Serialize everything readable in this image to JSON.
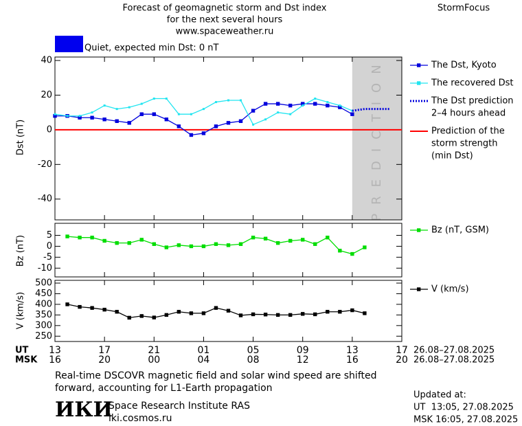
{
  "header": {
    "title": [
      "Forecast of geomagnetic storm and Dst index",
      "for the next several hours",
      "www.spaceweather.ru"
    ],
    "brand": "StormFocus"
  },
  "status": {
    "text": "Quiet, expected min Dst: 0 nT",
    "color": "#0000ee"
  },
  "chart_data": [
    {
      "type": "line",
      "ylabel": "Dst (nT)",
      "xlim": [
        0,
        28
      ],
      "ylim": [
        -52,
        42
      ],
      "yticks": [
        -40,
        -20,
        0,
        20,
        40
      ],
      "prediction_region": {
        "x": [
          24,
          28
        ],
        "color": "#d3d3d3",
        "label": "PREDICTION"
      },
      "min_dst": {
        "name": [
          "Prediction of the",
          "storm strength",
          "(min Dst)"
        ],
        "color": "#ff0000",
        "value": 0
      },
      "series": [
        {
          "name": [
            "The Dst, Kyoto"
          ],
          "color": "#0000dd",
          "marker": "square",
          "linestyle": "solid",
          "x": [
            0,
            1,
            2,
            3,
            4,
            5,
            6,
            7,
            8,
            9,
            10,
            11,
            12,
            13,
            14,
            15,
            16,
            17,
            18,
            19,
            20,
            21,
            22,
            23,
            24
          ],
          "values": [
            8,
            8,
            7,
            7,
            6,
            5,
            4,
            9,
            9,
            6,
            2,
            -3,
            -2,
            2,
            4,
            5,
            11,
            15,
            15,
            14,
            15,
            15,
            14,
            13,
            9
          ]
        },
        {
          "name": [
            "The recovered Dst"
          ],
          "color": "#22e5f0",
          "marker": "dot",
          "linestyle": "solid",
          "x": [
            0,
            1,
            2,
            3,
            4,
            5,
            6,
            7,
            8,
            9,
            10,
            11,
            12,
            13,
            14,
            15,
            16,
            17,
            18,
            19,
            20,
            21,
            22,
            23,
            24
          ],
          "values": [
            9,
            8,
            8,
            10,
            14,
            12,
            13,
            15,
            18,
            18,
            9,
            9,
            12,
            16,
            17,
            17,
            3,
            6,
            10,
            9,
            14,
            18,
            16,
            14,
            11
          ]
        },
        {
          "name": [
            "The Dst prediction",
            "2–4 hours ahead"
          ],
          "color": "#0000dd",
          "marker": "none",
          "linestyle": "dotted",
          "x": [
            24,
            25,
            26,
            27
          ],
          "values": [
            11,
            12,
            12,
            12
          ]
        }
      ]
    },
    {
      "type": "line",
      "ylabel": "Bz (nT)",
      "xlim": [
        0,
        28
      ],
      "ylim": [
        -14,
        10.5
      ],
      "yticks": [
        -10,
        -5,
        0,
        5
      ],
      "series": [
        {
          "name": [
            "Bz (nT, GSM)"
          ],
          "color": "#00dd00",
          "marker": "square",
          "linestyle": "solid",
          "x": [
            1,
            2,
            3,
            4,
            5,
            6,
            7,
            8,
            9,
            10,
            11,
            12,
            13,
            14,
            15,
            16,
            17,
            18,
            19,
            20,
            21,
            22,
            23,
            24,
            25
          ],
          "values": [
            4.5,
            4,
            4,
            2.5,
            1.5,
            1.5,
            3,
            1,
            -0.5,
            0.5,
            0,
            0,
            1,
            0.5,
            1,
            4,
            3.5,
            1.5,
            2.5,
            3,
            1,
            4,
            -2,
            -3.5,
            -0.5
          ]
        }
      ]
    },
    {
      "type": "line",
      "ylabel": "V (km/s)",
      "xlim": [
        0,
        28
      ],
      "ylim": [
        225,
        513
      ],
      "yticks": [
        250,
        300,
        350,
        400,
        450,
        500
      ],
      "series": [
        {
          "name": [
            "V (km/s)"
          ],
          "color": "#000000",
          "marker": "square",
          "linestyle": "solid",
          "x": [
            1,
            2,
            3,
            4,
            5,
            6,
            7,
            8,
            9,
            10,
            11,
            12,
            13,
            14,
            15,
            16,
            17,
            18,
            19,
            20,
            21,
            22,
            23,
            24,
            25
          ],
          "values": [
            400,
            388,
            383,
            375,
            365,
            337,
            345,
            338,
            350,
            365,
            358,
            358,
            383,
            370,
            348,
            353,
            352,
            350,
            350,
            355,
            353,
            365,
            365,
            372,
            358
          ]
        }
      ],
      "xrow_labels": [
        "UT",
        "MSK"
      ],
      "xrow_ranges": [
        "26.08–27.08.2025",
        "26.08–27.08.2025"
      ],
      "xticks": [
        {
          "value": 0,
          "label": "13"
        },
        {
          "value": 4,
          "label": "17"
        },
        {
          "value": 8,
          "label": "21"
        },
        {
          "value": 12,
          "label": "01"
        },
        {
          "value": 16,
          "label": "05"
        },
        {
          "value": 20,
          "label": "09"
        },
        {
          "value": 24,
          "label": "13"
        },
        {
          "value": 28,
          "label": "17"
        }
      ],
      "xticks2": [
        {
          "value": 0,
          "label": "16"
        },
        {
          "value": 4,
          "label": "20"
        },
        {
          "value": 8,
          "label": "00"
        },
        {
          "value": 12,
          "label": "04"
        },
        {
          "value": 16,
          "label": "08"
        },
        {
          "value": 20,
          "label": "12"
        },
        {
          "value": 24,
          "label": "16"
        },
        {
          "value": 28,
          "label": "20"
        }
      ]
    }
  ],
  "footer": {
    "note": [
      "Real-time DSCOVR magnetic field and solar wind speed are shifted",
      "forward, accounting for L1-Earth propagation"
    ],
    "logo": "ИКИ",
    "institute": "Space Research Institute RAS",
    "url": "iki.cosmos.ru",
    "updated": [
      "Updated at:",
      "UT  13:05, 27.08.2025",
      "MSK 16:05, 27.08.2025"
    ]
  }
}
